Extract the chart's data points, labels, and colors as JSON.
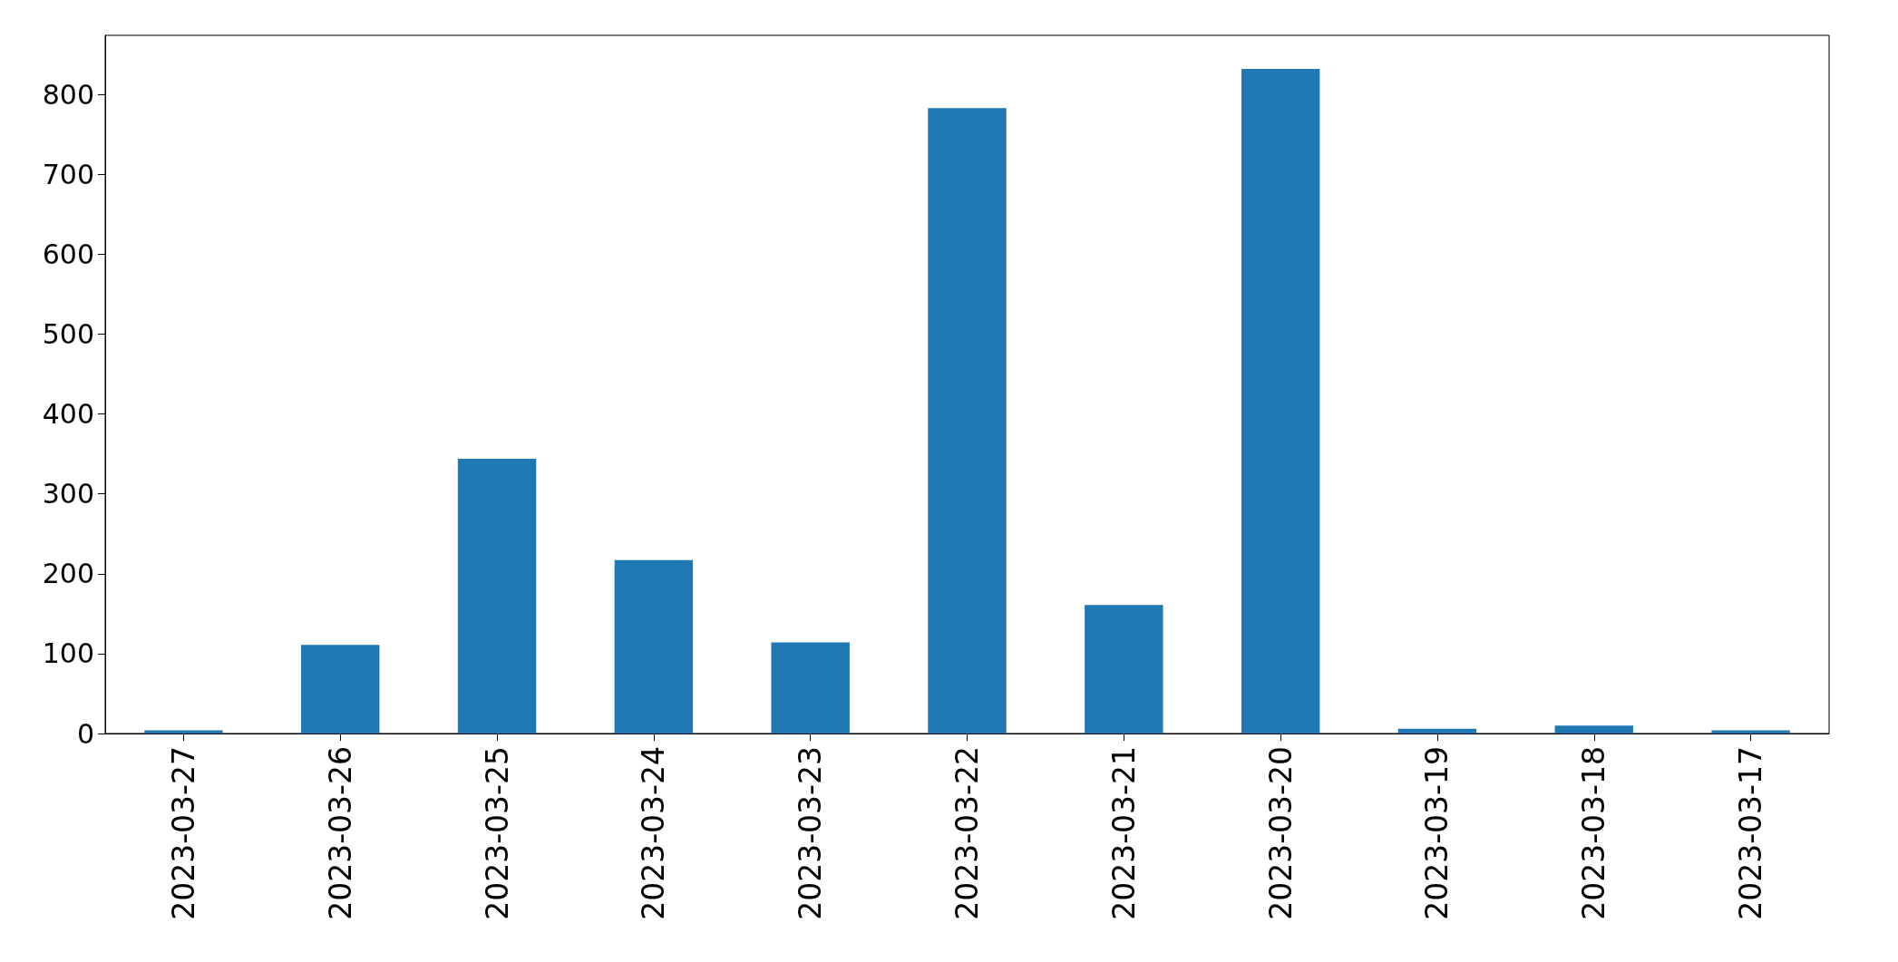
{
  "chart_data": {
    "type": "bar",
    "categories": [
      "2023-03-27",
      "2023-03-26",
      "2023-03-25",
      "2023-03-24",
      "2023-03-23",
      "2023-03-22",
      "2023-03-21",
      "2023-03-20",
      "2023-03-19",
      "2023-03-18",
      "2023-03-17"
    ],
    "values": [
      4,
      111,
      344,
      217,
      114,
      783,
      161,
      832,
      6,
      10,
      4
    ],
    "color": "#1f77b4",
    "ylim": [
      0,
      874
    ],
    "yticks": [
      0,
      100,
      200,
      300,
      400,
      500,
      600,
      700,
      800
    ],
    "grid": false
  }
}
